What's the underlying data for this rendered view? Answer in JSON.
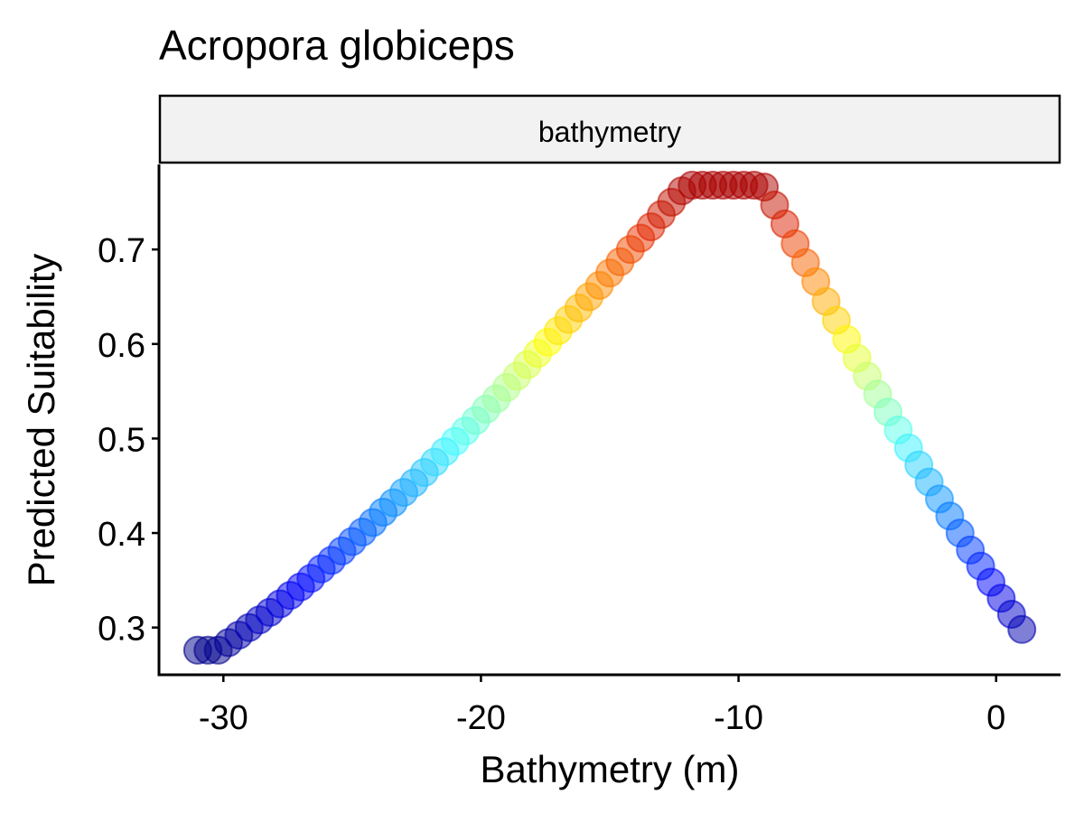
{
  "chart_data": {
    "type": "scatter",
    "title": "Acropora globiceps",
    "facet_label": "bathymetry",
    "xlabel": "Bathymetry (m)",
    "ylabel": "Predicted Suitability",
    "xlim": [
      -32.5,
      2.5
    ],
    "ylim": [
      0.25,
      0.79
    ],
    "x_ticks": [
      -30,
      -20,
      -10,
      0
    ],
    "x_tick_labels": [
      "-30",
      "-20",
      "-10",
      "0"
    ],
    "y_ticks": [
      0.3,
      0.4,
      0.5,
      0.6,
      0.7
    ],
    "y_tick_labels": [
      "0.3",
      "0.4",
      "0.5",
      "0.6",
      "0.7"
    ],
    "grid": false,
    "legend": "none",
    "color_scale": "jet (blue-low to red-high by predicted suitability)",
    "colors": {
      "low": "#00008b",
      "mid": "#40ffff",
      "high": "#aa0000",
      "strip_fill": "#f2f2f2",
      "axis": "#000000"
    },
    "series": [
      {
        "x": [
          -31.0,
          -30.6,
          -30.2,
          -29.8,
          -29.4,
          -29.0,
          -28.6,
          -28.2,
          -27.8,
          -27.4,
          -27.0,
          -26.6,
          -26.2,
          -25.8,
          -25.4,
          -25.0,
          -24.6,
          -24.2,
          -23.8,
          -23.4,
          -23.0,
          -22.6,
          -22.2,
          -21.8,
          -21.4,
          -21.0,
          -20.6,
          -20.2,
          -19.8,
          -19.4,
          -19.0,
          -18.6,
          -18.2,
          -17.8,
          -17.4,
          -17.0,
          -16.6,
          -16.2,
          -15.8,
          -15.4,
          -15.0,
          -14.6,
          -14.2,
          -13.8,
          -13.4,
          -13.0,
          -12.6,
          -12.2,
          -11.8,
          -11.4,
          -11.0,
          -10.6,
          -10.2,
          -9.8,
          -9.4,
          -9.0,
          -8.6,
          -8.2,
          -7.8,
          -7.4,
          -7.0,
          -6.6,
          -6.2,
          -5.8,
          -5.4,
          -5.0,
          -4.6,
          -4.2,
          -3.8,
          -3.4,
          -3.0,
          -2.6,
          -2.2,
          -1.8,
          -1.4,
          -1.0,
          -0.6,
          -0.2,
          0.2,
          0.6,
          1.0
        ],
        "y": [
          0.276,
          0.276,
          0.276,
          0.284,
          0.292,
          0.3,
          0.308,
          0.316,
          0.325,
          0.334,
          0.343,
          0.352,
          0.362,
          0.371,
          0.381,
          0.391,
          0.401,
          0.411,
          0.422,
          0.432,
          0.443,
          0.453,
          0.464,
          0.475,
          0.486,
          0.497,
          0.508,
          0.519,
          0.531,
          0.542,
          0.554,
          0.566,
          0.578,
          0.59,
          0.602,
          0.614,
          0.626,
          0.638,
          0.65,
          0.662,
          0.675,
          0.687,
          0.7,
          0.712,
          0.724,
          0.737,
          0.75,
          0.762,
          0.768,
          0.768,
          0.768,
          0.768,
          0.768,
          0.768,
          0.768,
          0.766,
          0.747,
          0.727,
          0.706,
          0.686,
          0.666,
          0.645,
          0.625,
          0.605,
          0.585,
          0.566,
          0.547,
          0.528,
          0.509,
          0.49,
          0.472,
          0.454,
          0.436,
          0.418,
          0.4,
          0.382,
          0.365,
          0.348,
          0.331,
          0.314,
          0.298
        ]
      }
    ]
  }
}
